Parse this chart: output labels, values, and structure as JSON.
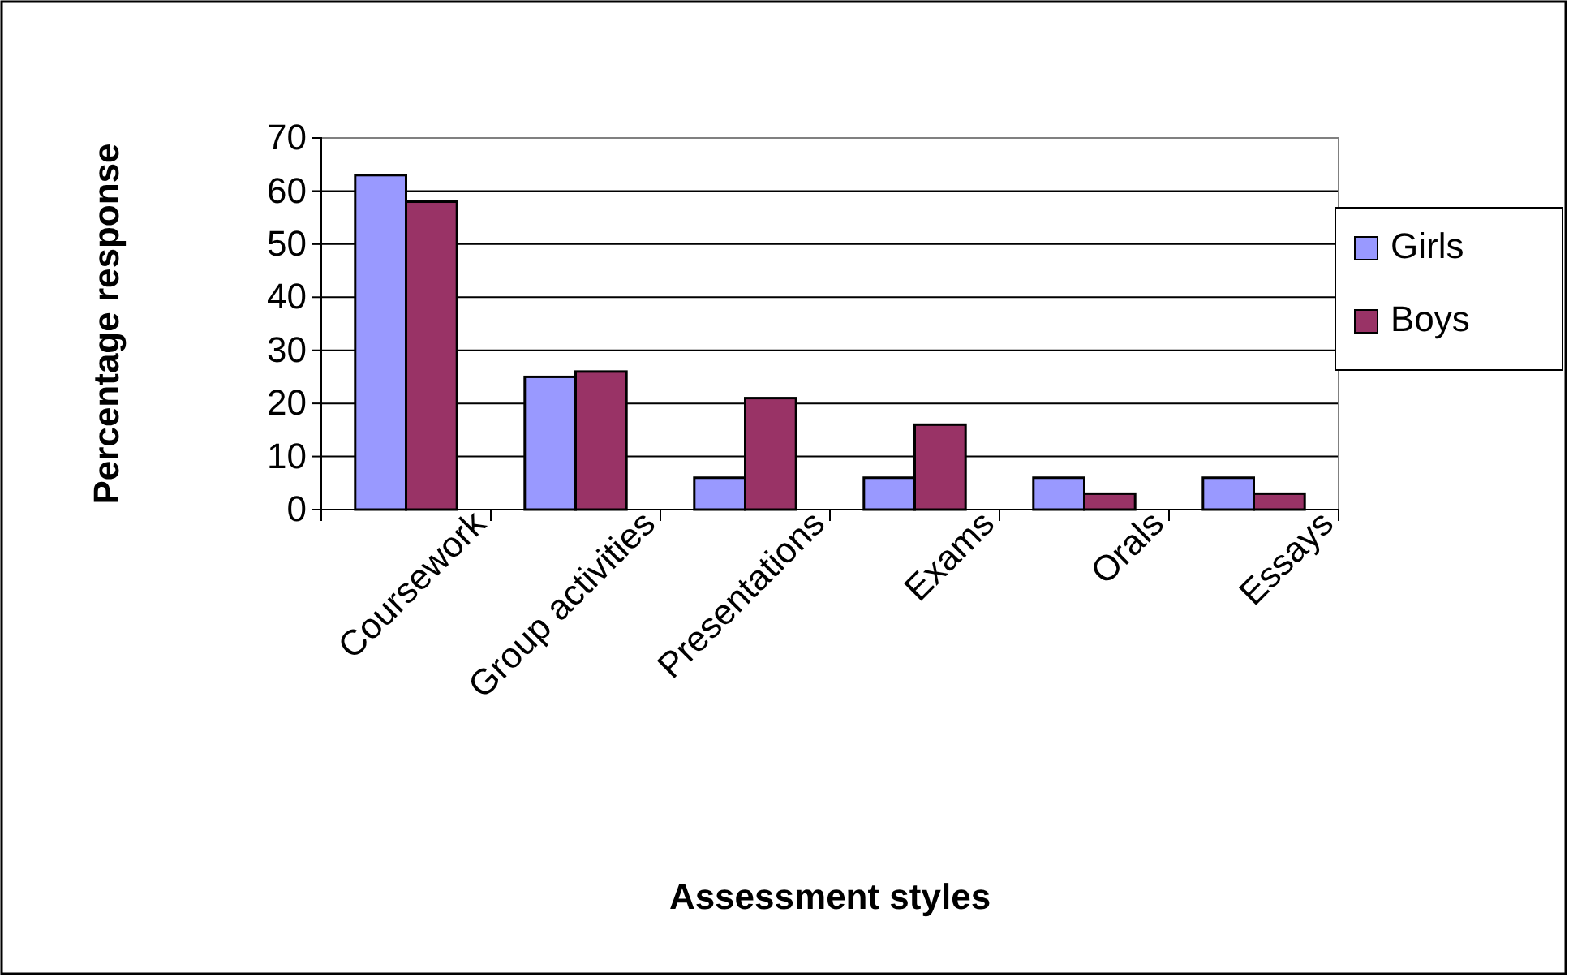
{
  "chart_data": {
    "type": "bar",
    "xlabel": "Assessment styles",
    "ylabel": "Percentage response",
    "categories": [
      "Coursework",
      "Group activities",
      "Presentations",
      "Exams",
      "Orals",
      "Essays"
    ],
    "series": [
      {
        "name": "Girls",
        "color": "#9999ff",
        "values": [
          63,
          25,
          6,
          6,
          6,
          6
        ]
      },
      {
        "name": "Boys",
        "color": "#993366",
        "values": [
          58,
          26,
          21,
          16,
          3,
          3
        ]
      }
    ],
    "ylim": [
      0,
      70
    ],
    "yticks": [
      0,
      10,
      20,
      30,
      40,
      50,
      60,
      70
    ],
    "grid": "y",
    "legend": "right"
  }
}
